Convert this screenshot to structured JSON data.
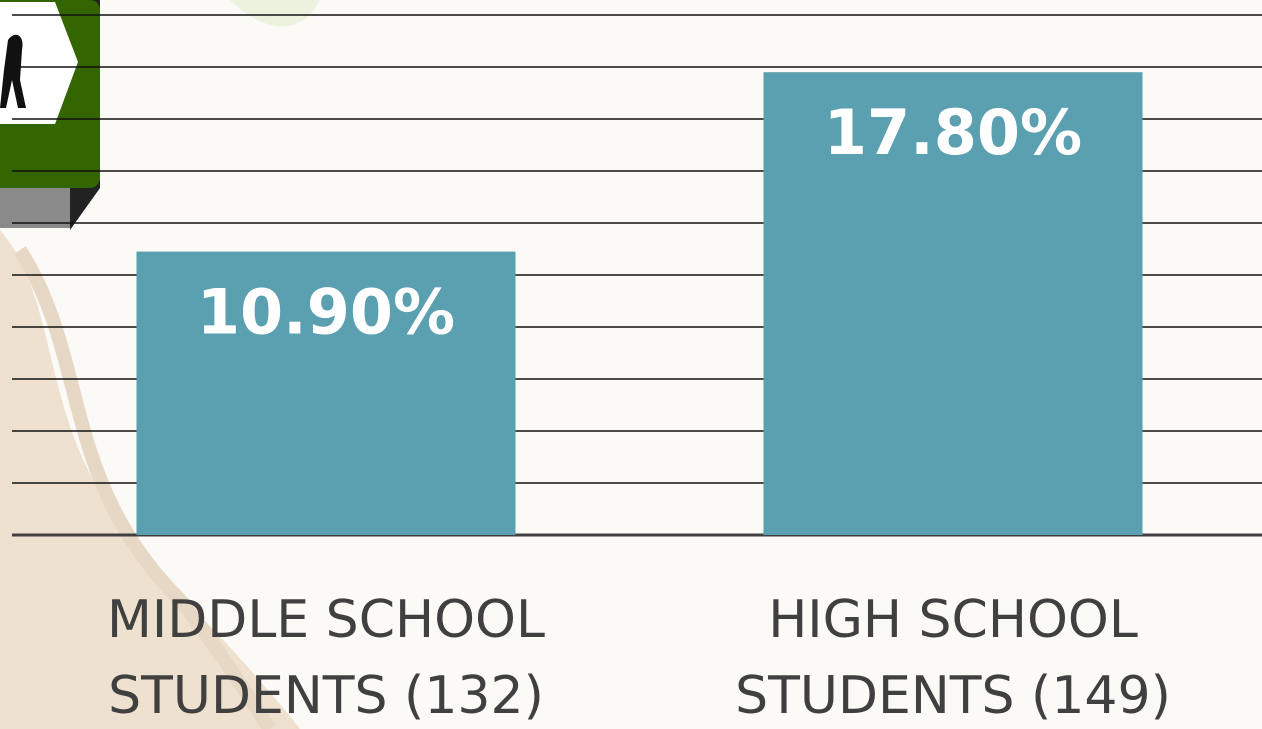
{
  "chart_data": {
    "type": "bar",
    "categories": [
      "MIDDLE SCHOOL STUDENTS (132)",
      "HIGH SCHOOL STUDENTS (149)"
    ],
    "values": [
      10.9,
      17.8
    ],
    "value_labels": [
      "10.90%",
      "17.80%"
    ],
    "color": "#5aa0b0",
    "ylim": [
      0,
      20.5
    ],
    "yticks": [
      0,
      2,
      4,
      6,
      8,
      10,
      12,
      14,
      16,
      18,
      20
    ],
    "grid": true
  }
}
